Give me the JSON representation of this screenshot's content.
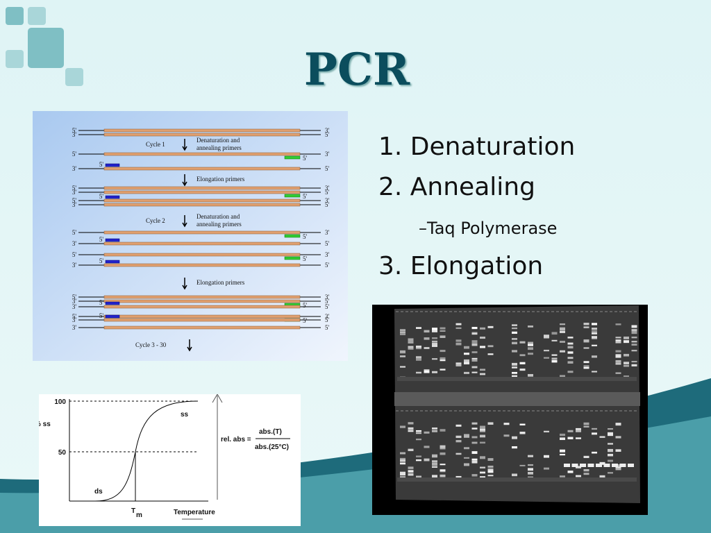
{
  "slide": {
    "title": "PCR",
    "points": [
      "1. Denaturation",
      "2. Annealing",
      "3. Elongation"
    ],
    "sub_point": "–Taq Polymerase",
    "diagram": {
      "ends": [
        "5'",
        "3'"
      ],
      "steps": [
        {
          "cycle": "Cycle 1",
          "action": [
            "Denaturation and",
            "annealing primers"
          ]
        },
        {
          "action": [
            "Elongation primers"
          ]
        },
        {
          "cycle": "Cycle 2",
          "action": [
            "Denaturation and",
            "annealing primers"
          ]
        },
        {
          "action": [
            "Elongation primers"
          ]
        },
        {
          "cycle": "Cycle 3 - 30"
        }
      ]
    },
    "melting_curve": {
      "y_labels": [
        "100",
        "50"
      ],
      "y_title": "% ss",
      "ss": "ss",
      "ds": "ds",
      "t": "T",
      "m": "m",
      "x_title": "Temperature",
      "formula": "rel. abs =",
      "numerator": "abs.(T)",
      "denominator": "abs.(25°C)"
    }
  }
}
